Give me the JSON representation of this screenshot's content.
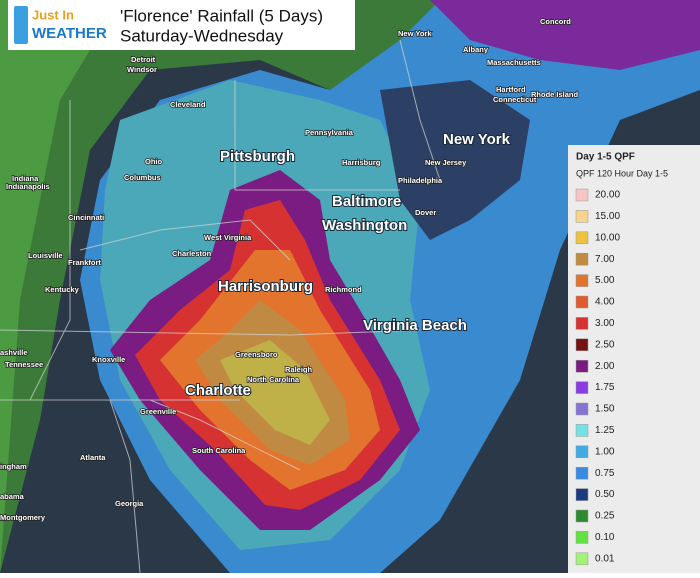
{
  "header": {
    "logo_top": "Just In",
    "logo_bottom": "WEATHER",
    "title": "'Florence' Rainfall (5 Days)",
    "subtitle": "Saturday-Wednesday"
  },
  "cities": [
    "Pittsburgh",
    "New York",
    "Baltimore",
    "Washington",
    "Harrisonburg",
    "Virginia Beach",
    "Charlotte"
  ],
  "places": [
    "Concord",
    "New York",
    "Albany",
    "Massachusetts",
    "Hartford",
    "Connecticut",
    "Rhode Island",
    "Pennsylvania",
    "Harrisburg",
    "New Jersey",
    "Philadelphia",
    "Dover",
    "Detroit",
    "Windsor",
    "Cleveland",
    "Ohio",
    "Columbus",
    "Indiana",
    "Indianapolis",
    "Cincinnati",
    "West Virginia",
    "Charleston",
    "Louisville",
    "Frankfort",
    "Kentucky",
    "Richmond",
    "ashville",
    "Tennessee",
    "Knoxville",
    "Greensboro",
    "Raleigh",
    "North Carolina",
    "Greenville",
    "South Carolina",
    "Atlanta",
    "Georgia",
    "ingham",
    "abama",
    "Montgomery"
  ],
  "legend": {
    "title": "Day 1-5 QPF",
    "subtitle": "QPF 120 Hour Day 1-5",
    "entries": [
      {
        "label": "20.00",
        "color": "#f7c4c4"
      },
      {
        "label": "15.00",
        "color": "#f6d48c"
      },
      {
        "label": "10.00",
        "color": "#efc23e"
      },
      {
        "label": "7.00",
        "color": "#c08a42"
      },
      {
        "label": "5.00",
        "color": "#e2742e"
      },
      {
        "label": "4.00",
        "color": "#df5a2c"
      },
      {
        "label": "3.00",
        "color": "#d63232"
      },
      {
        "label": "2.50",
        "color": "#761212"
      },
      {
        "label": "2.00",
        "color": "#7a1c82"
      },
      {
        "label": "1.75",
        "color": "#8a3ce2"
      },
      {
        "label": "1.50",
        "color": "#8574d2"
      },
      {
        "label": "1.25",
        "color": "#74e2e2"
      },
      {
        "label": "1.00",
        "color": "#40aae2"
      },
      {
        "label": "0.75",
        "color": "#3a8ae2"
      },
      {
        "label": "0.50",
        "color": "#1c3a80"
      },
      {
        "label": "0.25",
        "color": "#2e8a2e"
      },
      {
        "label": "0.10",
        "color": "#62e242"
      },
      {
        "label": "0.01",
        "color": "#a2f276"
      }
    ]
  }
}
